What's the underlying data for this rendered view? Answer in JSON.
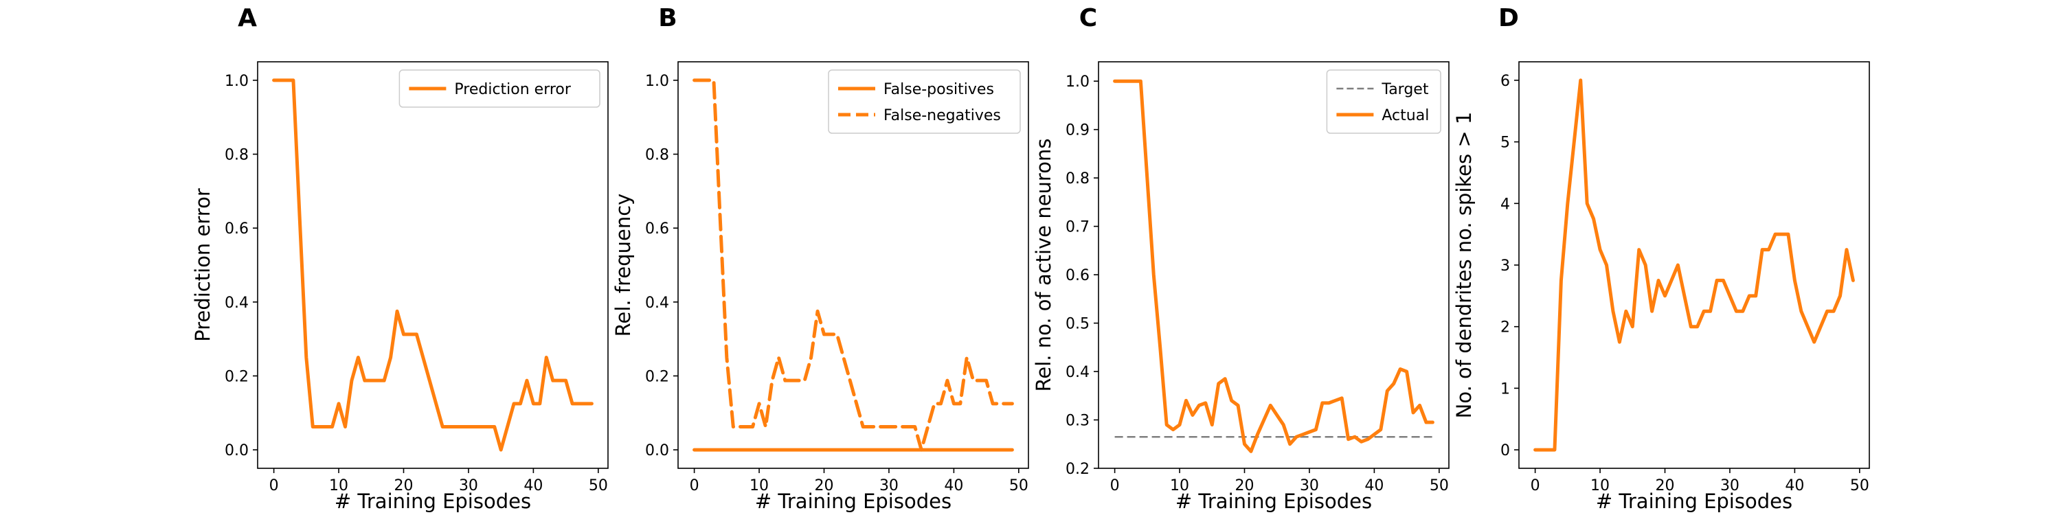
{
  "colors": {
    "series": "#ff7f0e",
    "target": "#7f7f7f",
    "axis": "#000000",
    "legend_border": "#cccccc"
  },
  "chart_data": [
    {
      "panel": "A",
      "type": "line",
      "xlabel": "# Training Episodes",
      "ylabel": "Prediction error",
      "xlim": [
        -2.5,
        51.5
      ],
      "ylim": [
        -0.05,
        1.05
      ],
      "xticks": [
        0,
        10,
        20,
        30,
        40,
        50
      ],
      "yticks": [
        0.0,
        0.2,
        0.4,
        0.6,
        0.8,
        1.0
      ],
      "ytick_labels": [
        "0.0",
        "0.2",
        "0.4",
        "0.6",
        "0.8",
        "1.0"
      ],
      "legend": {
        "placement": "top-right"
      },
      "series": [
        {
          "name": "Prediction error",
          "style": "solid",
          "x": [
            0,
            1,
            2,
            3,
            4,
            5,
            6,
            7,
            8,
            9,
            10,
            11,
            12,
            13,
            14,
            15,
            16,
            17,
            18,
            19,
            20,
            21,
            22,
            23,
            24,
            25,
            26,
            27,
            28,
            29,
            30,
            31,
            32,
            33,
            34,
            35,
            36,
            37,
            38,
            39,
            40,
            41,
            42,
            43,
            44,
            45,
            46,
            47,
            48,
            49
          ],
          "y": [
            1.0,
            1.0,
            1.0,
            1.0,
            0.62,
            0.25,
            0.0625,
            0.0625,
            0.0625,
            0.0625,
            0.125,
            0.0625,
            0.1875,
            0.25,
            0.1875,
            0.1875,
            0.1875,
            0.1875,
            0.25,
            0.375,
            0.3125,
            0.3125,
            0.3125,
            0.25,
            0.1875,
            0.125,
            0.0625,
            0.0625,
            0.0625,
            0.0625,
            0.0625,
            0.0625,
            0.0625,
            0.0625,
            0.0625,
            0.0,
            0.0625,
            0.125,
            0.125,
            0.1875,
            0.125,
            0.125,
            0.25,
            0.1875,
            0.1875,
            0.1875,
            0.125,
            0.125,
            0.125,
            0.125
          ]
        }
      ]
    },
    {
      "panel": "B",
      "type": "line",
      "xlabel": "# Training Episodes",
      "ylabel": "Rel. frequency",
      "xlim": [
        -2.5,
        51.5
      ],
      "ylim": [
        -0.05,
        1.05
      ],
      "xticks": [
        0,
        10,
        20,
        30,
        40,
        50
      ],
      "yticks": [
        0.0,
        0.2,
        0.4,
        0.6,
        0.8,
        1.0
      ],
      "ytick_labels": [
        "0.0",
        "0.2",
        "0.4",
        "0.6",
        "0.8",
        "1.0"
      ],
      "legend": {
        "placement": "top-right"
      },
      "series": [
        {
          "name": "False-positives",
          "style": "solid",
          "x": [
            0,
            1,
            2,
            3,
            4,
            5,
            6,
            7,
            8,
            9,
            10,
            11,
            12,
            13,
            14,
            15,
            16,
            17,
            18,
            19,
            20,
            21,
            22,
            23,
            24,
            25,
            26,
            27,
            28,
            29,
            30,
            31,
            32,
            33,
            34,
            35,
            36,
            37,
            38,
            39,
            40,
            41,
            42,
            43,
            44,
            45,
            46,
            47,
            48,
            49
          ],
          "y": [
            0,
            0,
            0,
            0,
            0,
            0,
            0,
            0,
            0,
            0,
            0,
            0,
            0,
            0,
            0,
            0,
            0,
            0,
            0,
            0,
            0,
            0,
            0,
            0,
            0,
            0,
            0,
            0,
            0,
            0,
            0,
            0,
            0,
            0,
            0,
            0,
            0,
            0,
            0,
            0,
            0,
            0,
            0,
            0,
            0,
            0,
            0,
            0,
            0,
            0
          ]
        },
        {
          "name": "False-negatives",
          "style": "dashed",
          "x": [
            0,
            1,
            2,
            3,
            4,
            5,
            6,
            7,
            8,
            9,
            10,
            11,
            12,
            13,
            14,
            15,
            16,
            17,
            18,
            19,
            20,
            21,
            22,
            23,
            24,
            25,
            26,
            27,
            28,
            29,
            30,
            31,
            32,
            33,
            34,
            35,
            36,
            37,
            38,
            39,
            40,
            41,
            42,
            43,
            44,
            45,
            46,
            47,
            48,
            49
          ],
          "y": [
            1.0,
            1.0,
            1.0,
            1.0,
            0.62,
            0.25,
            0.0625,
            0.0625,
            0.0625,
            0.0625,
            0.125,
            0.0625,
            0.1875,
            0.25,
            0.1875,
            0.1875,
            0.1875,
            0.1875,
            0.25,
            0.375,
            0.3125,
            0.3125,
            0.3125,
            0.25,
            0.1875,
            0.125,
            0.0625,
            0.0625,
            0.0625,
            0.0625,
            0.0625,
            0.0625,
            0.0625,
            0.0625,
            0.0625,
            0.0,
            0.0625,
            0.125,
            0.125,
            0.1875,
            0.125,
            0.125,
            0.25,
            0.1875,
            0.1875,
            0.1875,
            0.125,
            0.125,
            0.125,
            0.125
          ]
        }
      ]
    },
    {
      "panel": "C",
      "type": "line",
      "xlabel": "# Training Episodes",
      "ylabel": "Rel. no. of active neurons",
      "xlim": [
        -2.5,
        51.5
      ],
      "ylim": [
        0.2,
        1.04
      ],
      "xticks": [
        0,
        10,
        20,
        30,
        40,
        50
      ],
      "yticks": [
        0.2,
        0.3,
        0.4,
        0.5,
        0.6,
        0.7,
        0.8,
        0.9,
        1.0
      ],
      "ytick_labels": [
        "0.2",
        "0.3",
        "0.4",
        "0.5",
        "0.6",
        "0.7",
        "0.8",
        "0.9",
        "1.0"
      ],
      "legend": {
        "placement": "top-right"
      },
      "series": [
        {
          "name": "Target",
          "style": "dashed",
          "x": [
            0,
            49
          ],
          "y": [
            0.265,
            0.265
          ]
        },
        {
          "name": "Actual",
          "style": "solid",
          "x": [
            0,
            1,
            2,
            3,
            4,
            5,
            6,
            7,
            8,
            9,
            10,
            11,
            12,
            13,
            14,
            15,
            16,
            17,
            18,
            19,
            20,
            21,
            22,
            23,
            24,
            25,
            26,
            27,
            28,
            29,
            30,
            31,
            32,
            33,
            34,
            35,
            36,
            37,
            38,
            39,
            40,
            41,
            42,
            43,
            44,
            45,
            46,
            47,
            48,
            49
          ],
          "y": [
            1.0,
            1.0,
            1.0,
            1.0,
            1.0,
            0.8,
            0.6,
            0.45,
            0.29,
            0.28,
            0.29,
            0.34,
            0.31,
            0.33,
            0.335,
            0.29,
            0.375,
            0.385,
            0.34,
            0.33,
            0.25,
            0.235,
            0.27,
            0.3,
            0.33,
            0.31,
            0.29,
            0.25,
            0.265,
            0.27,
            0.275,
            0.28,
            0.335,
            0.335,
            0.34,
            0.345,
            0.26,
            0.265,
            0.255,
            0.26,
            0.27,
            0.28,
            0.36,
            0.375,
            0.405,
            0.4,
            0.315,
            0.33,
            0.295,
            0.295
          ]
        }
      ]
    },
    {
      "panel": "D",
      "type": "line",
      "xlabel": "# Training Episodes",
      "ylabel": "No. of dendrites no. spikes > 1",
      "xlim": [
        -2.5,
        51.5
      ],
      "ylim": [
        -0.3,
        6.3
      ],
      "xticks": [
        0,
        10,
        20,
        30,
        40,
        50
      ],
      "yticks": [
        0,
        1,
        2,
        3,
        4,
        5,
        6
      ],
      "ytick_labels": [
        "0",
        "1",
        "2",
        "3",
        "4",
        "5",
        "6"
      ],
      "series": [
        {
          "name": "",
          "style": "solid",
          "x": [
            0,
            1,
            2,
            3,
            4,
            5,
            6,
            7,
            8,
            9,
            10,
            11,
            12,
            13,
            14,
            15,
            16,
            17,
            18,
            19,
            20,
            21,
            22,
            23,
            24,
            25,
            26,
            27,
            28,
            29,
            30,
            31,
            32,
            33,
            34,
            35,
            36,
            37,
            38,
            39,
            40,
            41,
            42,
            43,
            44,
            45,
            46,
            47,
            48,
            49
          ],
          "y": [
            0,
            0,
            0,
            0,
            2.75,
            4.0,
            5.0,
            6.0,
            4.0,
            3.75,
            3.25,
            3.0,
            2.25,
            1.75,
            2.25,
            2.0,
            3.25,
            3.0,
            2.25,
            2.75,
            2.5,
            2.75,
            3.0,
            2.5,
            2.0,
            2.0,
            2.25,
            2.25,
            2.75,
            2.75,
            2.5,
            2.25,
            2.25,
            2.5,
            2.5,
            3.25,
            3.25,
            3.5,
            3.5,
            3.5,
            2.75,
            2.25,
            2.0,
            1.75,
            2.0,
            2.25,
            2.25,
            2.5,
            3.25,
            2.75
          ]
        }
      ]
    }
  ]
}
